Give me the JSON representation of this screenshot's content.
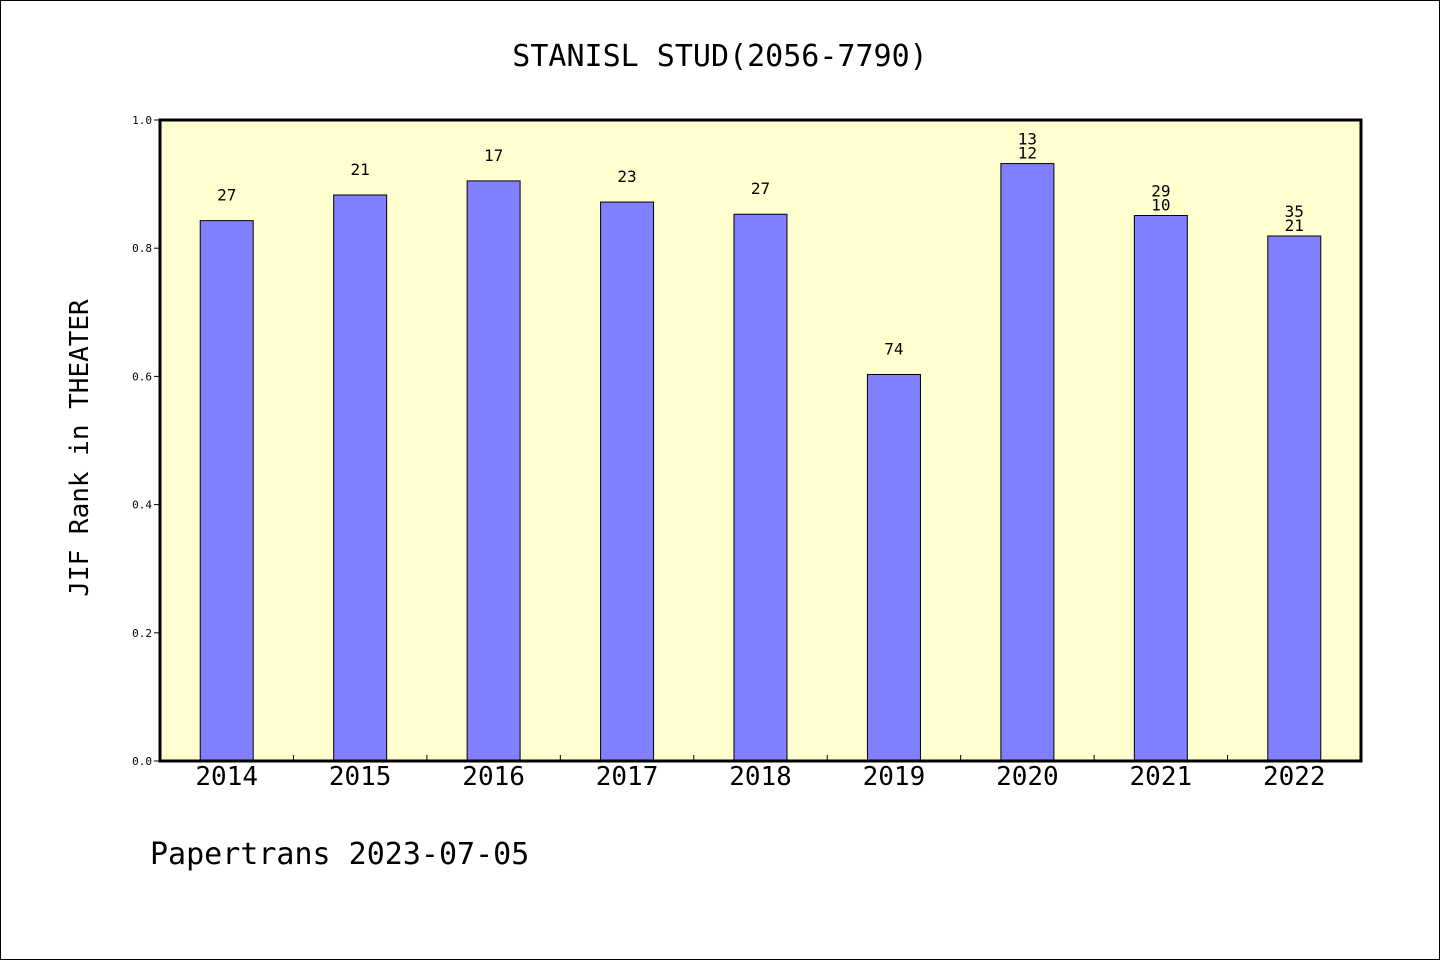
{
  "chart_data": {
    "type": "bar",
    "title": "STANISL STUD(2056-7790)",
    "ylabel": "JIF Rank in THEATER",
    "xlabel": "",
    "footer": "Papertrans 2023-07-05",
    "ylim": [
      0,
      1.0
    ],
    "yticks": [
      "0.0",
      "0.2",
      "0.4",
      "0.6",
      "0.8",
      "1.0"
    ],
    "categories": [
      "2014",
      "2015",
      "2016",
      "2017",
      "2018",
      "2019",
      "2020",
      "2021",
      "2022"
    ],
    "values": [
      0.843,
      0.883,
      0.905,
      0.872,
      0.853,
      0.603,
      0.932,
      0.851,
      0.819
    ],
    "bar_labels": [
      [
        "27"
      ],
      [
        "21"
      ],
      [
        "17"
      ],
      [
        "23"
      ],
      [
        "27"
      ],
      [
        "74"
      ],
      [
        "13",
        "12"
      ],
      [
        "29",
        "10"
      ],
      [
        "35",
        "21"
      ]
    ],
    "grid": false,
    "colors": {
      "bar": "#8080ff",
      "plot_background": "#ffffd0",
      "axis": "#000000"
    }
  }
}
